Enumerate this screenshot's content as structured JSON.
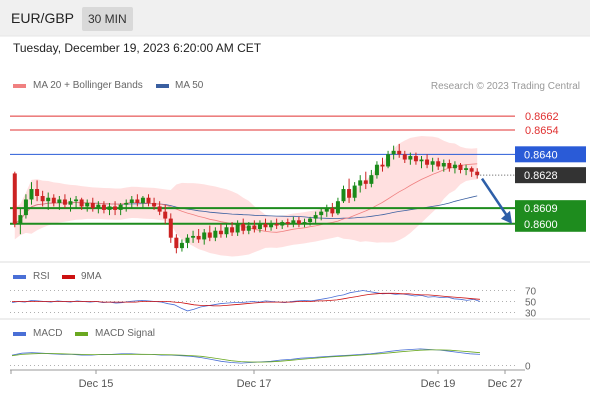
{
  "header": {
    "pair": "EUR/GBP",
    "timeframe": "30 MIN"
  },
  "datetime": "Tuesday, December 19, 2023 6:20:00 AM CET",
  "legend": {
    "ma20_bb": "MA 20 + Bollinger Bands",
    "ma50": "MA 50",
    "credit": "Research © 2023 Trading Central",
    "rsi": "RSI",
    "ma9": "9MA",
    "macd": "MACD",
    "macd_signal": "MACD Signal"
  },
  "colors": {
    "ma20": "#f08080",
    "ma50": "#3a5fa0",
    "bollinger": "#ffd6d6",
    "resistance": "#e03030",
    "pivot": "#2a5bd7",
    "support": "#1e8c1e",
    "last": "#333333",
    "rsi": "#4a6fd6",
    "rsi_ma": "#cc1111",
    "macd": "#4a6fd6",
    "macd_signal": "#6aa820",
    "arrow": "#2e5fa8"
  },
  "chart_data": [
    {
      "type": "candlestick",
      "title": "",
      "ylim": [
        0.8578,
        0.8673
      ],
      "x_ticks": [
        "Dec 15",
        "Dec 17",
        "Dec 19",
        "Dec 27"
      ],
      "last_price": "0.8628",
      "levels": [
        {
          "value": 0.8662,
          "label": "0.8662",
          "role": "resistance"
        },
        {
          "value": 0.8654,
          "label": "0.8654",
          "role": "resistance"
        },
        {
          "value": 0.864,
          "label": "0.8640",
          "role": "pivot"
        },
        {
          "value": 0.8609,
          "label": "0.8609",
          "role": "support"
        },
        {
          "value": 0.86,
          "label": "0.8600",
          "role": "support"
        }
      ],
      "forecast": {
        "from": 0.8626,
        "to": 0.86,
        "direction": "down"
      },
      "candles": [
        [
          0.8629,
          0.863,
          0.8598,
          0.86
        ],
        [
          0.86,
          0.8609,
          0.8594,
          0.8605
        ],
        [
          0.8605,
          0.8617,
          0.8603,
          0.8614
        ],
        [
          0.8614,
          0.8624,
          0.8611,
          0.862
        ],
        [
          0.862,
          0.8625,
          0.8613,
          0.8616
        ],
        [
          0.8616,
          0.8619,
          0.861,
          0.8613
        ],
        [
          0.8613,
          0.8618,
          0.8608,
          0.8615
        ],
        [
          0.8615,
          0.8617,
          0.861,
          0.8612
        ],
        [
          0.8612,
          0.8616,
          0.8608,
          0.8614
        ],
        [
          0.8614,
          0.8617,
          0.8609,
          0.8611
        ],
        [
          0.8611,
          0.8615,
          0.8607,
          0.8613
        ],
        [
          0.8613,
          0.8616,
          0.8609,
          0.8614
        ],
        [
          0.8614,
          0.8615,
          0.8608,
          0.861
        ],
        [
          0.861,
          0.8614,
          0.8607,
          0.8612
        ],
        [
          0.8612,
          0.8615,
          0.8607,
          0.8609
        ],
        [
          0.8609,
          0.8613,
          0.8606,
          0.8611
        ],
        [
          0.8611,
          0.8613,
          0.8606,
          0.8608
        ],
        [
          0.8608,
          0.8612,
          0.8605,
          0.861
        ],
        [
          0.861,
          0.8613,
          0.8605,
          0.8608
        ],
        [
          0.8608,
          0.8612,
          0.8605,
          0.8611
        ],
        [
          0.8611,
          0.8614,
          0.8607,
          0.8612
        ],
        [
          0.8612,
          0.8616,
          0.8609,
          0.8614
        ],
        [
          0.8614,
          0.8617,
          0.861,
          0.8612
        ],
        [
          0.8612,
          0.8616,
          0.8609,
          0.8615
        ],
        [
          0.8615,
          0.8617,
          0.861,
          0.8612
        ],
        [
          0.8612,
          0.8615,
          0.8608,
          0.861
        ],
        [
          0.861,
          0.8613,
          0.8605,
          0.8607
        ],
        [
          0.8607,
          0.8611,
          0.86,
          0.8603
        ],
        [
          0.8603,
          0.8606,
          0.8589,
          0.8592
        ],
        [
          0.8592,
          0.8594,
          0.8583,
          0.8586
        ],
        [
          0.8586,
          0.8591,
          0.8584,
          0.8589
        ],
        [
          0.8589,
          0.8594,
          0.8586,
          0.8592
        ],
        [
          0.8592,
          0.8596,
          0.8589,
          0.8593
        ],
        [
          0.8593,
          0.8597,
          0.8589,
          0.8591
        ],
        [
          0.8591,
          0.8597,
          0.8588,
          0.8595
        ],
        [
          0.8595,
          0.8599,
          0.859,
          0.8592
        ],
        [
          0.8592,
          0.8598,
          0.859,
          0.8596
        ],
        [
          0.8596,
          0.86,
          0.8592,
          0.8594
        ],
        [
          0.8594,
          0.86,
          0.8592,
          0.8598
        ],
        [
          0.8598,
          0.8601,
          0.8593,
          0.8595
        ],
        [
          0.8595,
          0.8602,
          0.8593,
          0.86
        ],
        [
          0.86,
          0.8603,
          0.8594,
          0.8596
        ],
        [
          0.8596,
          0.8601,
          0.8594,
          0.8599
        ],
        [
          0.8599,
          0.8602,
          0.8595,
          0.8597
        ],
        [
          0.8597,
          0.8602,
          0.8595,
          0.86
        ],
        [
          0.86,
          0.8603,
          0.8596,
          0.8598
        ],
        [
          0.8598,
          0.8602,
          0.8596,
          0.86
        ],
        [
          0.86,
          0.8603,
          0.8597,
          0.8599
        ],
        [
          0.8599,
          0.8602,
          0.8597,
          0.8601
        ],
        [
          0.8601,
          0.8603,
          0.8598,
          0.86
        ],
        [
          0.86,
          0.8604,
          0.8598,
          0.8602
        ],
        [
          0.8602,
          0.8604,
          0.8598,
          0.86
        ],
        [
          0.86,
          0.8603,
          0.8598,
          0.8601
        ],
        [
          0.8601,
          0.8604,
          0.8599,
          0.8603
        ],
        [
          0.8603,
          0.8607,
          0.86,
          0.8605
        ],
        [
          0.8605,
          0.8609,
          0.8602,
          0.8607
        ],
        [
          0.8607,
          0.8611,
          0.8604,
          0.8609
        ],
        [
          0.8609,
          0.8612,
          0.8604,
          0.8606
        ],
        [
          0.8606,
          0.8615,
          0.8605,
          0.8613
        ],
        [
          0.8613,
          0.8622,
          0.8612,
          0.862
        ],
        [
          0.862,
          0.8626,
          0.8612,
          0.8615
        ],
        [
          0.8615,
          0.8624,
          0.8613,
          0.8622
        ],
        [
          0.8622,
          0.8628,
          0.8618,
          0.8625
        ],
        [
          0.8625,
          0.863,
          0.862,
          0.8623
        ],
        [
          0.8623,
          0.8631,
          0.8621,
          0.8628
        ],
        [
          0.8628,
          0.8636,
          0.8626,
          0.8634
        ],
        [
          0.8634,
          0.8638,
          0.863,
          0.8633
        ],
        [
          0.8633,
          0.8642,
          0.8632,
          0.864
        ],
        [
          0.864,
          0.8645,
          0.8637,
          0.8642
        ],
        [
          0.8642,
          0.8646,
          0.8638,
          0.864
        ],
        [
          0.864,
          0.8642,
          0.8635,
          0.8637
        ],
        [
          0.8637,
          0.8641,
          0.8634,
          0.8639
        ],
        [
          0.8639,
          0.8641,
          0.8634,
          0.8636
        ],
        [
          0.8636,
          0.8639,
          0.8632,
          0.8637
        ],
        [
          0.8637,
          0.864,
          0.8632,
          0.8634
        ],
        [
          0.8634,
          0.8638,
          0.863,
          0.8636
        ],
        [
          0.8636,
          0.8638,
          0.8631,
          0.8633
        ],
        [
          0.8633,
          0.8637,
          0.863,
          0.8635
        ],
        [
          0.8635,
          0.8637,
          0.863,
          0.8632
        ],
        [
          0.8632,
          0.8636,
          0.8629,
          0.8634
        ],
        [
          0.8634,
          0.8635,
          0.8629,
          0.8631
        ],
        [
          0.8631,
          0.8634,
          0.8628,
          0.8632
        ],
        [
          0.8632,
          0.8633,
          0.8627,
          0.863
        ],
        [
          0.863,
          0.8632,
          0.8626,
          0.8628
        ]
      ]
    },
    {
      "type": "line",
      "title": "RSI",
      "ylim": [
        20,
        80
      ],
      "ticks": [
        "70",
        "50",
        "30"
      ],
      "series": [
        {
          "name": "RSI",
          "values": [
            48,
            50,
            49,
            52,
            51,
            50,
            49,
            51,
            50,
            49,
            51,
            50,
            49,
            50,
            48,
            49,
            47,
            48,
            50,
            51,
            52,
            51,
            50,
            49,
            46,
            44,
            38,
            33,
            36,
            40,
            42,
            44,
            46,
            47,
            48,
            48,
            49,
            50,
            49,
            51,
            50,
            49,
            48,
            50,
            51,
            52,
            51,
            53,
            55,
            57,
            60,
            62,
            66,
            68,
            70,
            68,
            66,
            64,
            65,
            63,
            64,
            62,
            60,
            61,
            58,
            59,
            57,
            58,
            55,
            54,
            52,
            54,
            50
          ]
        },
        {
          "name": "9MA",
          "values": [
            50,
            50,
            50,
            50,
            50,
            50,
            50,
            50,
            50,
            50,
            50,
            50,
            50,
            50,
            49,
            49,
            49,
            49,
            49,
            49,
            50,
            50,
            50,
            50,
            50,
            49,
            48,
            46,
            44,
            43,
            43,
            42,
            42,
            43,
            44,
            45,
            46,
            47,
            48,
            49,
            49,
            49,
            49,
            49,
            50,
            50,
            50,
            51,
            51,
            52,
            53,
            55,
            57,
            59,
            61,
            63,
            64,
            65,
            65,
            65,
            64,
            64,
            63,
            62,
            62,
            61,
            60,
            59,
            58,
            57,
            56,
            55,
            54
          ]
        }
      ]
    },
    {
      "type": "line",
      "title": "MACD",
      "ticks": [
        "0"
      ],
      "series": [
        {
          "name": "MACD",
          "values": [
            0.2,
            0.5,
            0.6,
            0.5,
            0.4,
            0.3,
            0.3,
            0.2,
            0.2,
            0.3,
            0.3,
            0.4,
            0.4,
            0.3,
            0.3,
            0.2,
            0.2,
            0.1,
            0.0,
            -0.2,
            -0.5,
            -0.8,
            -1.0,
            -1.1,
            -1.0,
            -0.9,
            -0.8,
            -0.6,
            -0.5,
            -0.3,
            -0.2,
            -0.1,
            0.0,
            0.1,
            0.2,
            0.3,
            0.4,
            0.6,
            0.8,
            1.0,
            1.1,
            1.2,
            1.1,
            1.0,
            0.8,
            0.6,
            0.4,
            0.3
          ]
        },
        {
          "name": "MACD Signal",
          "values": [
            0.1,
            0.3,
            0.4,
            0.45,
            0.45,
            0.4,
            0.35,
            0.3,
            0.28,
            0.27,
            0.28,
            0.3,
            0.32,
            0.32,
            0.31,
            0.28,
            0.25,
            0.2,
            0.12,
            0.0,
            -0.2,
            -0.45,
            -0.7,
            -0.85,
            -0.92,
            -0.93,
            -0.88,
            -0.78,
            -0.65,
            -0.5,
            -0.35,
            -0.22,
            -0.1,
            0.0,
            0.1,
            0.2,
            0.3,
            0.42,
            0.56,
            0.72,
            0.86,
            0.98,
            1.04,
            1.04,
            0.98,
            0.86,
            0.72,
            0.58
          ]
        }
      ]
    }
  ]
}
